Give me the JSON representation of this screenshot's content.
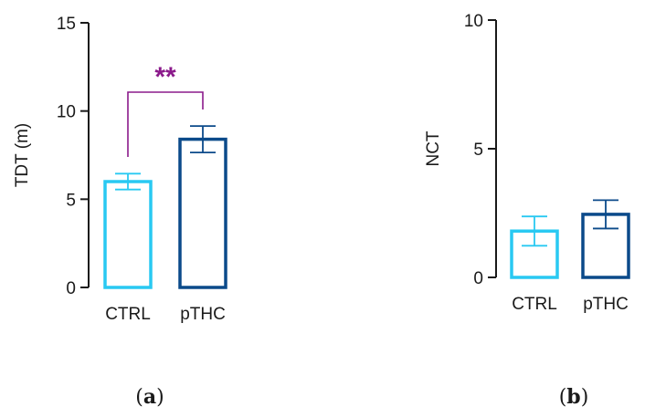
{
  "colors": {
    "ctrl": "#29C9F2",
    "pthc": "#0B4A8A",
    "significance": "#8B1A8B",
    "axis": "#1a1a1a"
  },
  "chart_data": [
    {
      "type": "bar",
      "panel": "a",
      "panel_label": {
        "open": "(",
        "letter": "a",
        "close": ")"
      },
      "ylabel": "TDT (m)",
      "xlabel": "",
      "ylim": [
        0,
        15
      ],
      "yticks": [
        0,
        5,
        10,
        15
      ],
      "categories": [
        "CTRL",
        "pTHC"
      ],
      "values": [
        6.0,
        8.4
      ],
      "errors": [
        0.45,
        0.75
      ],
      "significance": {
        "label": "**",
        "between": [
          "CTRL",
          "pTHC"
        ]
      }
    },
    {
      "type": "bar",
      "panel": "b",
      "panel_label": {
        "open": "(",
        "letter": "b",
        "close": ")"
      },
      "ylabel": "NCT",
      "xlabel": "",
      "ylim": [
        0,
        10
      ],
      "yticks": [
        0,
        5,
        10
      ],
      "categories": [
        "CTRL",
        "pTHC"
      ],
      "values": [
        1.8,
        2.45
      ],
      "errors": [
        0.57,
        0.55
      ]
    }
  ]
}
